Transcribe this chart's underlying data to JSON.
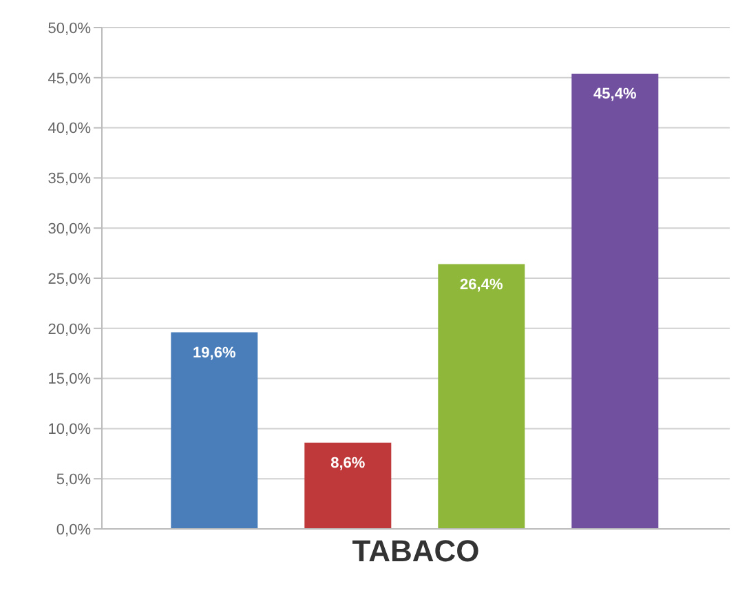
{
  "chart_data": {
    "type": "bar",
    "categories": [
      "TABACO"
    ],
    "series": [
      {
        "color": "#4a7ebb",
        "values": [
          19.6
        ],
        "value_labels": [
          "19,6%"
        ]
      },
      {
        "color": "#c0393a",
        "values": [
          8.6
        ],
        "value_labels": [
          "8,6%"
        ]
      },
      {
        "color": "#8fb83a",
        "values": [
          26.4
        ],
        "value_labels": [
          "26,4%"
        ]
      },
      {
        "color": "#7150a0",
        "values": [
          45.4
        ],
        "value_labels": [
          "45,4%"
        ]
      }
    ],
    "ylim": [
      0,
      50
    ],
    "yticks": [
      {
        "value": 0,
        "label": "0,0%"
      },
      {
        "value": 5,
        "label": "5,0%"
      },
      {
        "value": 10,
        "label": "10,0%"
      },
      {
        "value": 15,
        "label": "15,0%"
      },
      {
        "value": 20,
        "label": "20,0%"
      },
      {
        "value": 25,
        "label": "25,0%"
      },
      {
        "value": 30,
        "label": "30,0%"
      },
      {
        "value": 35,
        "label": "35,0%"
      },
      {
        "value": 40,
        "label": "40,0%"
      },
      {
        "value": 45,
        "label": "45,0%"
      },
      {
        "value": 50,
        "label": "50,0%"
      }
    ],
    "grid": "y"
  }
}
